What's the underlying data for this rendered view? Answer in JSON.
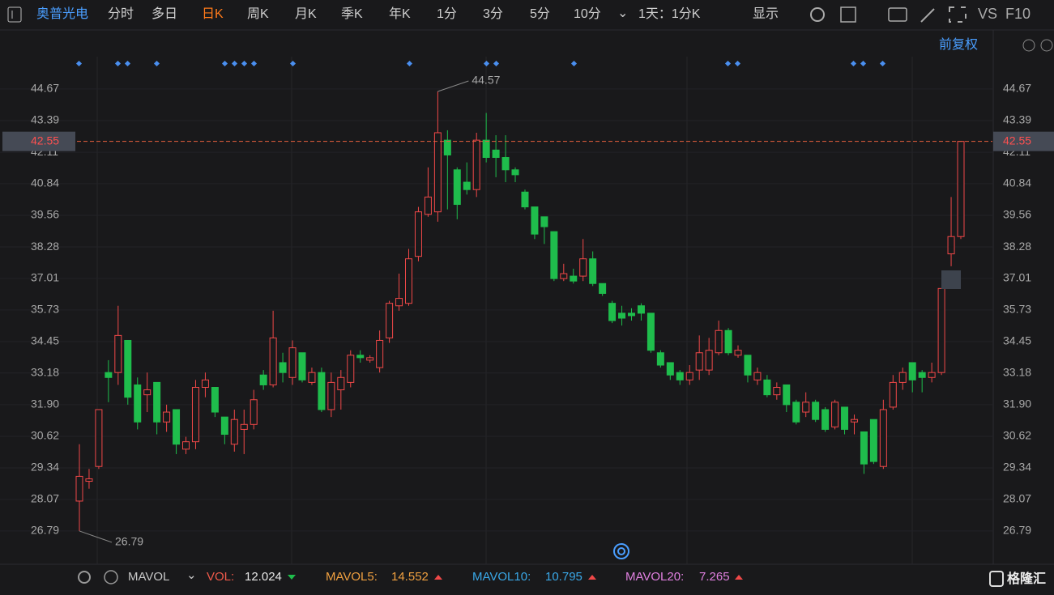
{
  "toolbar": {
    "stock": "奥普光电",
    "tabs": [
      "分时",
      "多日",
      "日K",
      "周K",
      "月K",
      "季K",
      "年K",
      "1分",
      "3分",
      "5分",
      "10分"
    ],
    "active_tab": "日K",
    "period": "1天：1分K",
    "display": "显示",
    "vs": "VS",
    "f10": "F10",
    "adjust": "前复权"
  },
  "indicator": {
    "name": "MAVOL",
    "vol_label": "VOL:",
    "vol": 12.024,
    "mavol5_label": "MAVOL5:",
    "mavol5": 14.552,
    "mavol10_label": "MAVOL10:",
    "mavol10": 10.795,
    "mavol20_label": "MAVOL20:",
    "mavol20": 7.265
  },
  "logo": "格隆汇",
  "chart_data": {
    "type": "candlestick",
    "open": [
      28.0,
      28.8,
      29.4,
      33.2,
      33.2,
      34.5,
      32.7,
      32.3,
      32.8,
      31.2,
      31.7,
      30.1,
      30.4,
      32.6,
      32.6,
      31.4,
      30.3,
      30.9,
      31.1,
      33.1,
      32.7,
      33.6,
      33.0,
      34.0,
      32.8,
      33.2,
      31.7,
      32.5,
      32.8,
      33.9,
      33.7,
      33.4,
      34.6,
      35.9,
      36.0,
      37.9,
      39.6,
      39.7,
      42.6,
      41.4,
      40.9,
      40.6,
      42.6,
      42.2,
      41.9,
      41.4,
      40.5,
      39.9,
      39.5,
      38.9,
      37.0,
      37.1,
      37.1,
      37.8,
      36.8,
      36.0,
      35.6,
      35.6,
      35.9,
      35.6,
      34.0,
      33.6,
      33.2,
      32.9,
      33.3,
      33.3,
      34.0,
      34.9,
      33.9,
      33.9,
      32.9,
      32.9,
      32.3,
      32.7,
      32.0,
      31.6,
      32.0,
      31.7,
      31.0,
      31.8,
      31.2,
      30.8,
      31.3,
      29.4,
      31.8,
      32.8,
      33.6,
      33.2,
      33.0,
      33.2,
      38.0,
      38.7
    ],
    "high": [
      30.3,
      29.3,
      31.7,
      33.7,
      35.9,
      34.5,
      33.0,
      33.2,
      32.8,
      31.9,
      31.7,
      30.6,
      32.9,
      33.2,
      32.6,
      31.4,
      31.7,
      31.7,
      32.5,
      33.3,
      35.7,
      34.0,
      34.5,
      34.0,
      33.4,
      33.4,
      33.2,
      33.3,
      34.1,
      34.1,
      33.9,
      34.9,
      36.1,
      37.2,
      38.2,
      39.9,
      41.5,
      44.57,
      43.0,
      41.5,
      41.7,
      42.9,
      43.7,
      42.8,
      42.8,
      41.5,
      40.6,
      39.9,
      39.5,
      38.9,
      37.6,
      37.4,
      38.6,
      38.1,
      36.8,
      36.1,
      35.9,
      35.8,
      36.0,
      35.6,
      34.1,
      33.6,
      33.3,
      33.5,
      34.7,
      34.6,
      35.3,
      35.0,
      34.3,
      33.9,
      33.4,
      33.1,
      32.8,
      32.7,
      32.1,
      32.4,
      32.1,
      31.8,
      32.1,
      31.8,
      31.5,
      30.8,
      31.3,
      32.1,
      33.1,
      33.4,
      33.6,
      33.3,
      33.6,
      36.6,
      40.3,
      42.55
    ],
    "low": [
      26.79,
      28.5,
      29.3,
      32.0,
      32.7,
      31.9,
      30.9,
      31.6,
      30.7,
      30.8,
      29.9,
      29.9,
      30.1,
      32.2,
      31.4,
      30.3,
      30.0,
      29.9,
      30.9,
      32.5,
      32.6,
      32.8,
      32.7,
      32.8,
      32.7,
      31.6,
      31.4,
      31.7,
      32.6,
      33.6,
      33.6,
      33.2,
      34.4,
      35.7,
      35.9,
      37.7,
      39.5,
      39.3,
      39.8,
      39.4,
      40.4,
      40.3,
      41.7,
      41.1,
      40.9,
      40.9,
      39.8,
      38.6,
      38.4,
      36.9,
      36.9,
      36.8,
      36.9,
      36.7,
      36.3,
      35.2,
      35.1,
      35.3,
      35.3,
      34.0,
      33.4,
      32.9,
      32.7,
      32.7,
      32.9,
      33.1,
      33.9,
      33.9,
      33.8,
      32.8,
      32.7,
      32.2,
      32.1,
      31.6,
      31.1,
      31.4,
      31.2,
      30.8,
      30.9,
      30.7,
      30.7,
      29.1,
      29.5,
      29.3,
      31.7,
      32.5,
      32.4,
      32.4,
      32.8,
      33.1,
      37.5,
      38.6
    ],
    "close": [
      29.0,
      28.9,
      31.7,
      33.0,
      34.7,
      32.2,
      31.2,
      32.5,
      31.2,
      31.6,
      30.3,
      30.4,
      32.6,
      32.9,
      31.6,
      30.7,
      31.3,
      31.1,
      32.1,
      32.7,
      34.6,
      33.2,
      34.2,
      32.9,
      33.2,
      31.7,
      32.8,
      33.0,
      33.9,
      33.8,
      33.8,
      34.5,
      36.0,
      36.2,
      37.8,
      39.7,
      40.3,
      42.9,
      42.0,
      40.0,
      40.6,
      42.6,
      41.9,
      41.9,
      41.4,
      41.2,
      39.9,
      38.8,
      39.1,
      37.0,
      37.2,
      36.9,
      37.8,
      36.8,
      36.4,
      35.3,
      35.4,
      35.5,
      35.6,
      34.1,
      33.5,
      33.1,
      32.9,
      33.2,
      34.0,
      34.1,
      34.9,
      34.0,
      34.1,
      33.1,
      33.2,
      32.3,
      32.6,
      31.9,
      31.2,
      32.0,
      31.3,
      30.9,
      32.0,
      30.9,
      31.3,
      29.5,
      29.6,
      31.7,
      32.8,
      33.2,
      32.9,
      33.0,
      33.2,
      36.6,
      38.7,
      42.55
    ],
    "up_color": "#f04848",
    "down_color": "#1fbd4c",
    "ylim": [
      25.51,
      46.96
    ],
    "yticks": [
      26.79,
      28.07,
      29.34,
      30.62,
      {
        "value": 31.9,
        "label": "31.90"
      },
      33.18,
      34.45,
      35.73,
      37.01,
      38.28,
      39.56,
      40.84,
      42.11,
      43.39,
      44.67
    ],
    "grid": true,
    "last_price": 42.55,
    "max_label": 44.57,
    "min_label": 26.79
  }
}
